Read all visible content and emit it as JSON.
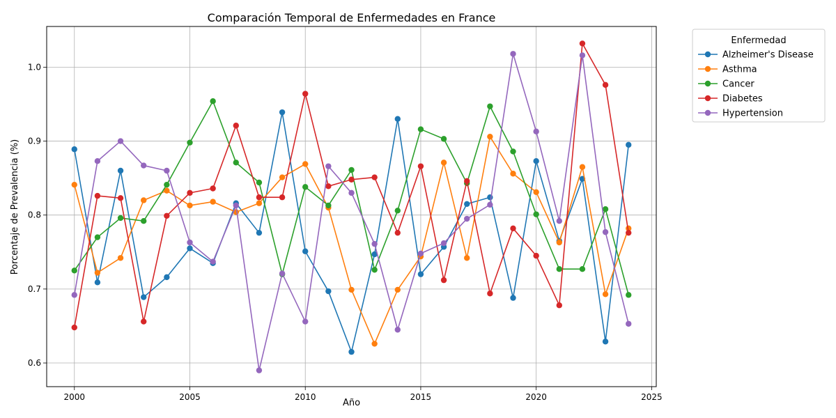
{
  "chart_data": {
    "type": "line",
    "title": "Comparación Temporal de Enfermedades en France",
    "xlabel": "Año",
    "ylabel": "Porcentaje de Prevalencia (%)",
    "xlim": [
      1998.8,
      2025.2
    ],
    "ylim": [
      0.568,
      1.055
    ],
    "xticks": [
      2000,
      2005,
      2010,
      2015,
      2020,
      2025
    ],
    "yticks": [
      0.6,
      0.7,
      0.8,
      0.9,
      1.0
    ],
    "xtick_labels": [
      "2000",
      "2005",
      "2010",
      "2015",
      "2020",
      "2025"
    ],
    "ytick_labels": [
      "0.6",
      "0.7",
      "0.8",
      "0.9",
      "1.0"
    ],
    "grid": true,
    "legend": {
      "title": "Enfermedad",
      "placement": "outside-top-right"
    },
    "x": [
      2000,
      2001,
      2002,
      2003,
      2004,
      2005,
      2006,
      2007,
      2008,
      2009,
      2010,
      2011,
      2012,
      2013,
      2014,
      2015,
      2016,
      2017,
      2018,
      2019,
      2020,
      2021,
      2022,
      2023,
      2024
    ],
    "series": [
      {
        "name": "Alzheimer's Disease",
        "color": "#1f77b4",
        "values": [
          0.889,
          0.709,
          0.86,
          0.689,
          0.716,
          0.755,
          0.735,
          0.816,
          0.776,
          0.939,
          0.751,
          0.697,
          0.615,
          0.747,
          0.93,
          0.72,
          0.757,
          0.815,
          0.824,
          0.688,
          0.873,
          0.765,
          0.849,
          0.629,
          0.895
        ]
      },
      {
        "name": "Asthma",
        "color": "#ff7f0e",
        "values": [
          0.841,
          0.722,
          0.742,
          0.82,
          0.833,
          0.813,
          0.818,
          0.804,
          0.816,
          0.851,
          0.869,
          0.81,
          0.699,
          0.626,
          0.699,
          0.744,
          0.871,
          0.742,
          0.906,
          0.856,
          0.831,
          0.763,
          0.865,
          0.693,
          0.782
        ]
      },
      {
        "name": "Cancer",
        "color": "#2ca02c",
        "values": [
          0.725,
          0.77,
          0.796,
          0.792,
          0.841,
          0.898,
          0.954,
          0.871,
          0.844,
          0.72,
          0.838,
          0.813,
          0.861,
          0.726,
          0.806,
          0.916,
          0.903,
          0.843,
          0.947,
          0.886,
          0.801,
          0.727,
          0.727,
          0.808,
          0.692
        ]
      },
      {
        "name": "Diabetes",
        "color": "#d62728",
        "values": [
          0.648,
          0.826,
          0.823,
          0.656,
          0.799,
          0.83,
          0.836,
          0.921,
          0.824,
          0.824,
          0.964,
          0.839,
          0.848,
          0.851,
          0.776,
          0.866,
          0.712,
          0.846,
          0.694,
          0.782,
          0.745,
          0.678,
          1.032,
          0.976,
          0.776
        ]
      },
      {
        "name": "Hypertension",
        "color": "#9467bd",
        "values": [
          0.692,
          0.873,
          0.9,
          0.867,
          0.86,
          0.763,
          0.737,
          0.813,
          0.59,
          0.721,
          0.656,
          0.866,
          0.83,
          0.761,
          0.645,
          0.748,
          0.762,
          0.795,
          0.814,
          1.018,
          0.913,
          0.792,
          1.016,
          0.777,
          0.653
        ]
      }
    ]
  }
}
